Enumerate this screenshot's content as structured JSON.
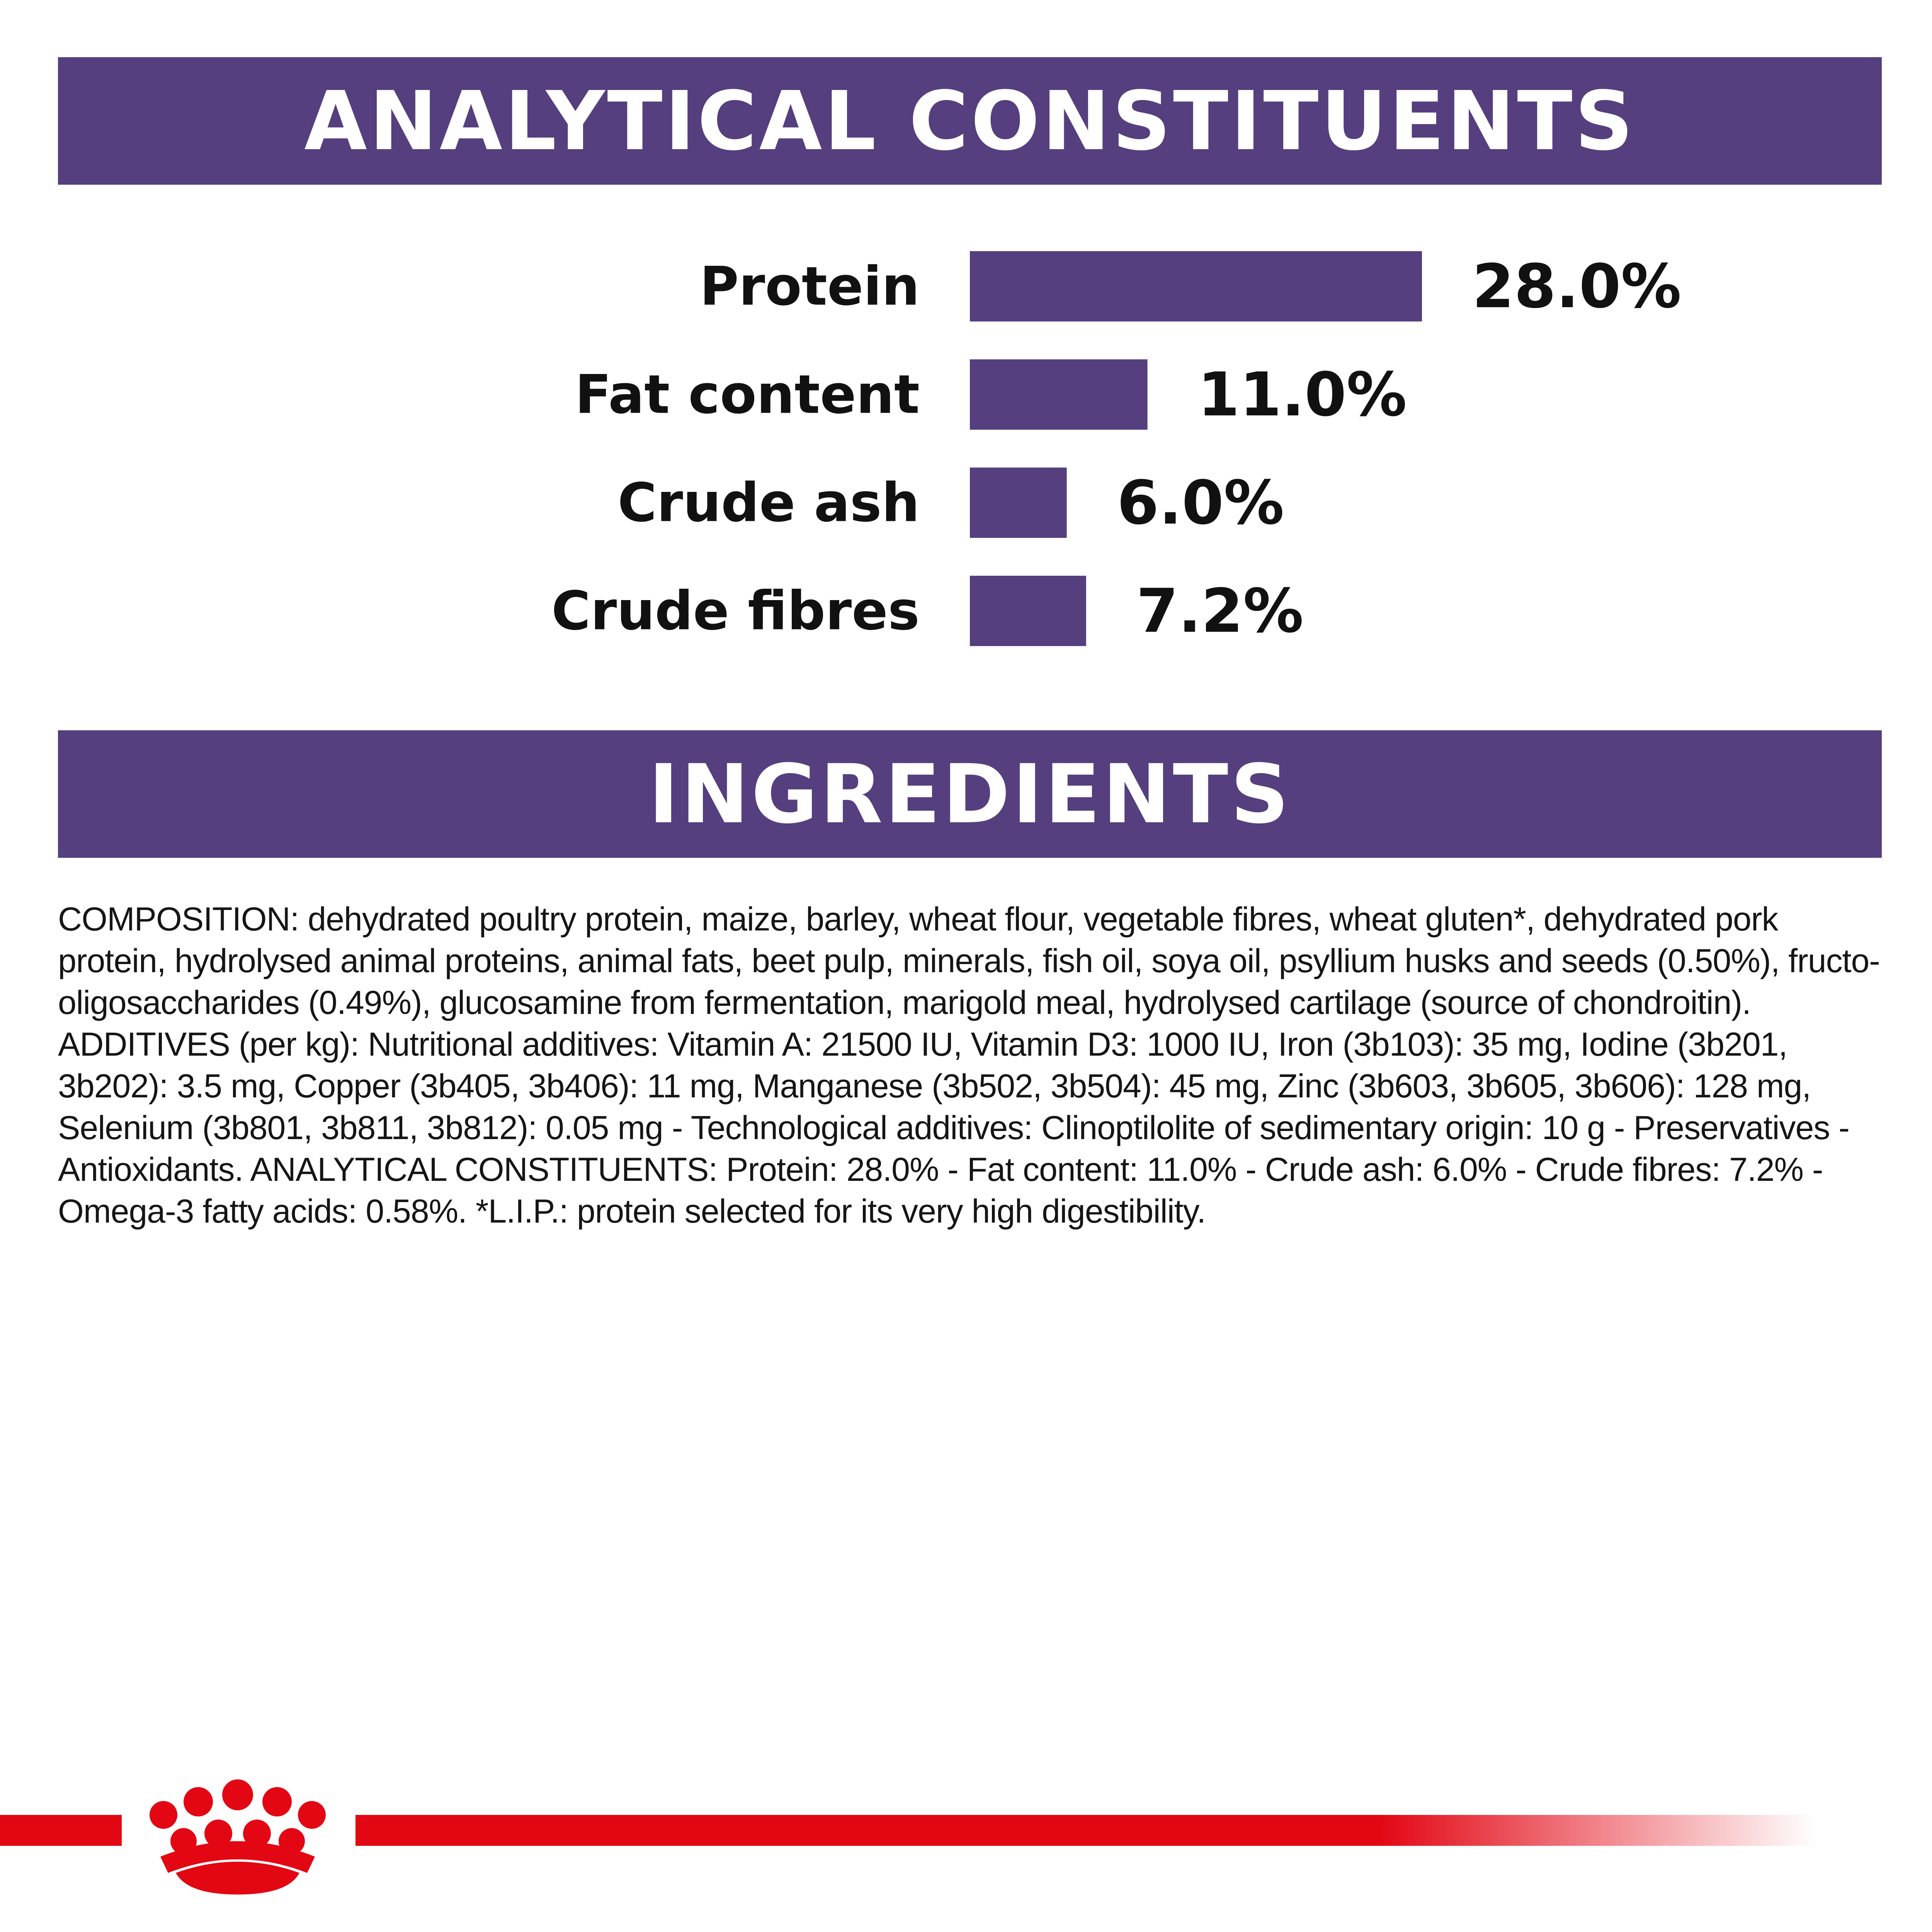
{
  "colors": {
    "purple": "#553f7e",
    "red": "#e30613",
    "text": "#111111"
  },
  "banners": {
    "analytical": "ANALYTICAL CONSTITUENTS",
    "ingredients": "INGREDIENTS"
  },
  "chart_data": {
    "type": "bar",
    "orientation": "horizontal",
    "categories": [
      "Protein",
      "Fat content",
      "Crude ash",
      "Crude fibres"
    ],
    "values": [
      28.0,
      11.0,
      6.0,
      7.2
    ],
    "value_labels": [
      "28.0%",
      "11.0%",
      "6.0%",
      "7.2%"
    ],
    "xlim": [
      0,
      28.0
    ],
    "grid": false,
    "legend": "none",
    "bar_color": "#553f7e"
  },
  "composition_text": "COMPOSITION: dehydrated poultry protein, maize, barley, wheat flour, vegetable fibres, wheat gluten*, dehydrated pork protein, hydrolysed animal proteins, animal fats, beet pulp, minerals, fish oil, soya oil, psyllium husks and seeds (0.50%), fructo-oligosaccharides (0.49%), glucosamine from fermentation, marigold meal, hydrolysed cartilage (source of chondroitin). ADDITIVES (per kg): Nutritional additives: Vitamin A: 21500 IU, Vitamin D3: 1000 IU, Iron (3b103): 35 mg, Iodine (3b201, 3b202): 3.5 mg, Copper (3b405, 3b406): 11 mg, Manganese (3b502, 3b504): 45 mg, Zinc (3b603, 3b605, 3b606): 128 mg, Selenium (3b801, 3b811, 3b812): 0.05 mg - Technological additives: Clinoptilolite of sedimentary origin: 10 g - Preservatives - Antioxidants. ANALYTICAL CONSTITUENTS: Protein: 28.0% - Fat content: 11.0% - Crude ash: 6.0% - Crude fibres: 7.2% - Omega-3 fatty acids: 0.58%. *L.I.P.: protein selected for its very high digestibility.",
  "logo": {
    "icon": "crown-icon"
  }
}
